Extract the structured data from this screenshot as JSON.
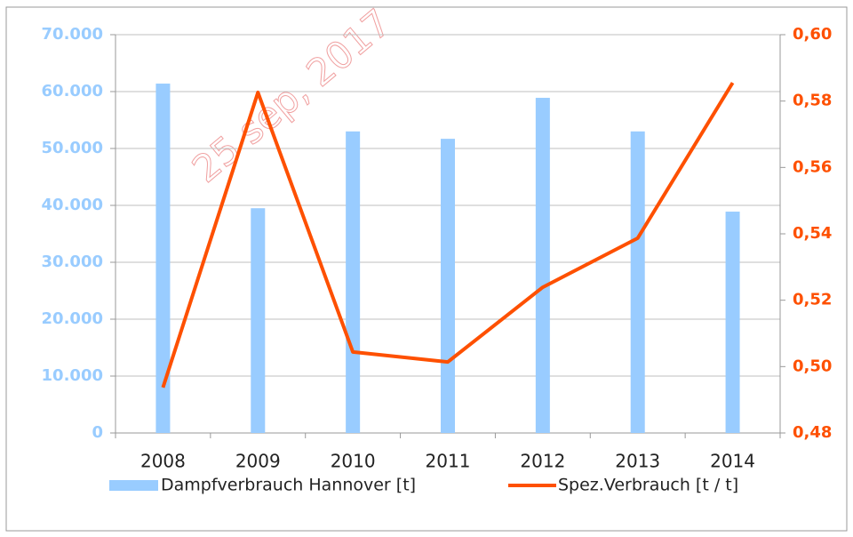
{
  "chart_data": {
    "type": "bar",
    "categories": [
      "2008",
      "2009",
      "2010",
      "2011",
      "2012",
      "2013",
      "2014"
    ],
    "series": [
      {
        "name": "Dampfverbrauch Hannover [t]",
        "color": "#99ccff",
        "type": "bar",
        "values": [
          61400,
          39500,
          53000,
          51700,
          58900,
          53000,
          38900
        ]
      },
      {
        "name": "Spez.Verbrauch [t / t]",
        "color": "#fe5000",
        "type": "line",
        "axis": "y2",
        "values": [
          0.4937,
          0.5826,
          0.5044,
          0.5014,
          0.5239,
          0.5387,
          0.5855
        ]
      }
    ],
    "ylim": [
      0,
      70000
    ],
    "yticks": [
      {
        "value": 0,
        "label": "0"
      },
      {
        "value": 10000,
        "label": "10.000"
      },
      {
        "value": 20000,
        "label": "20.000"
      },
      {
        "value": 30000,
        "label": "30.000"
      },
      {
        "value": 40000,
        "label": "40.000"
      },
      {
        "value": 50000,
        "label": "50.000"
      },
      {
        "value": 60000,
        "label": "60.000"
      },
      {
        "value": 70000,
        "label": "70.000"
      }
    ],
    "y2lim": [
      0.48,
      0.6
    ],
    "y2ticks": [
      {
        "value": 0.48,
        "label": "0,48"
      },
      {
        "value": 0.5,
        "label": "0,50"
      },
      {
        "value": 0.52,
        "label": "0,52"
      },
      {
        "value": 0.54,
        "label": "0,54"
      },
      {
        "value": 0.56,
        "label": "0,56"
      },
      {
        "value": 0.58,
        "label": "0,58"
      },
      {
        "value": 0.6,
        "label": "0,60"
      }
    ],
    "grid": true,
    "legend": "bottom",
    "watermark": "25 sep, 2017"
  }
}
